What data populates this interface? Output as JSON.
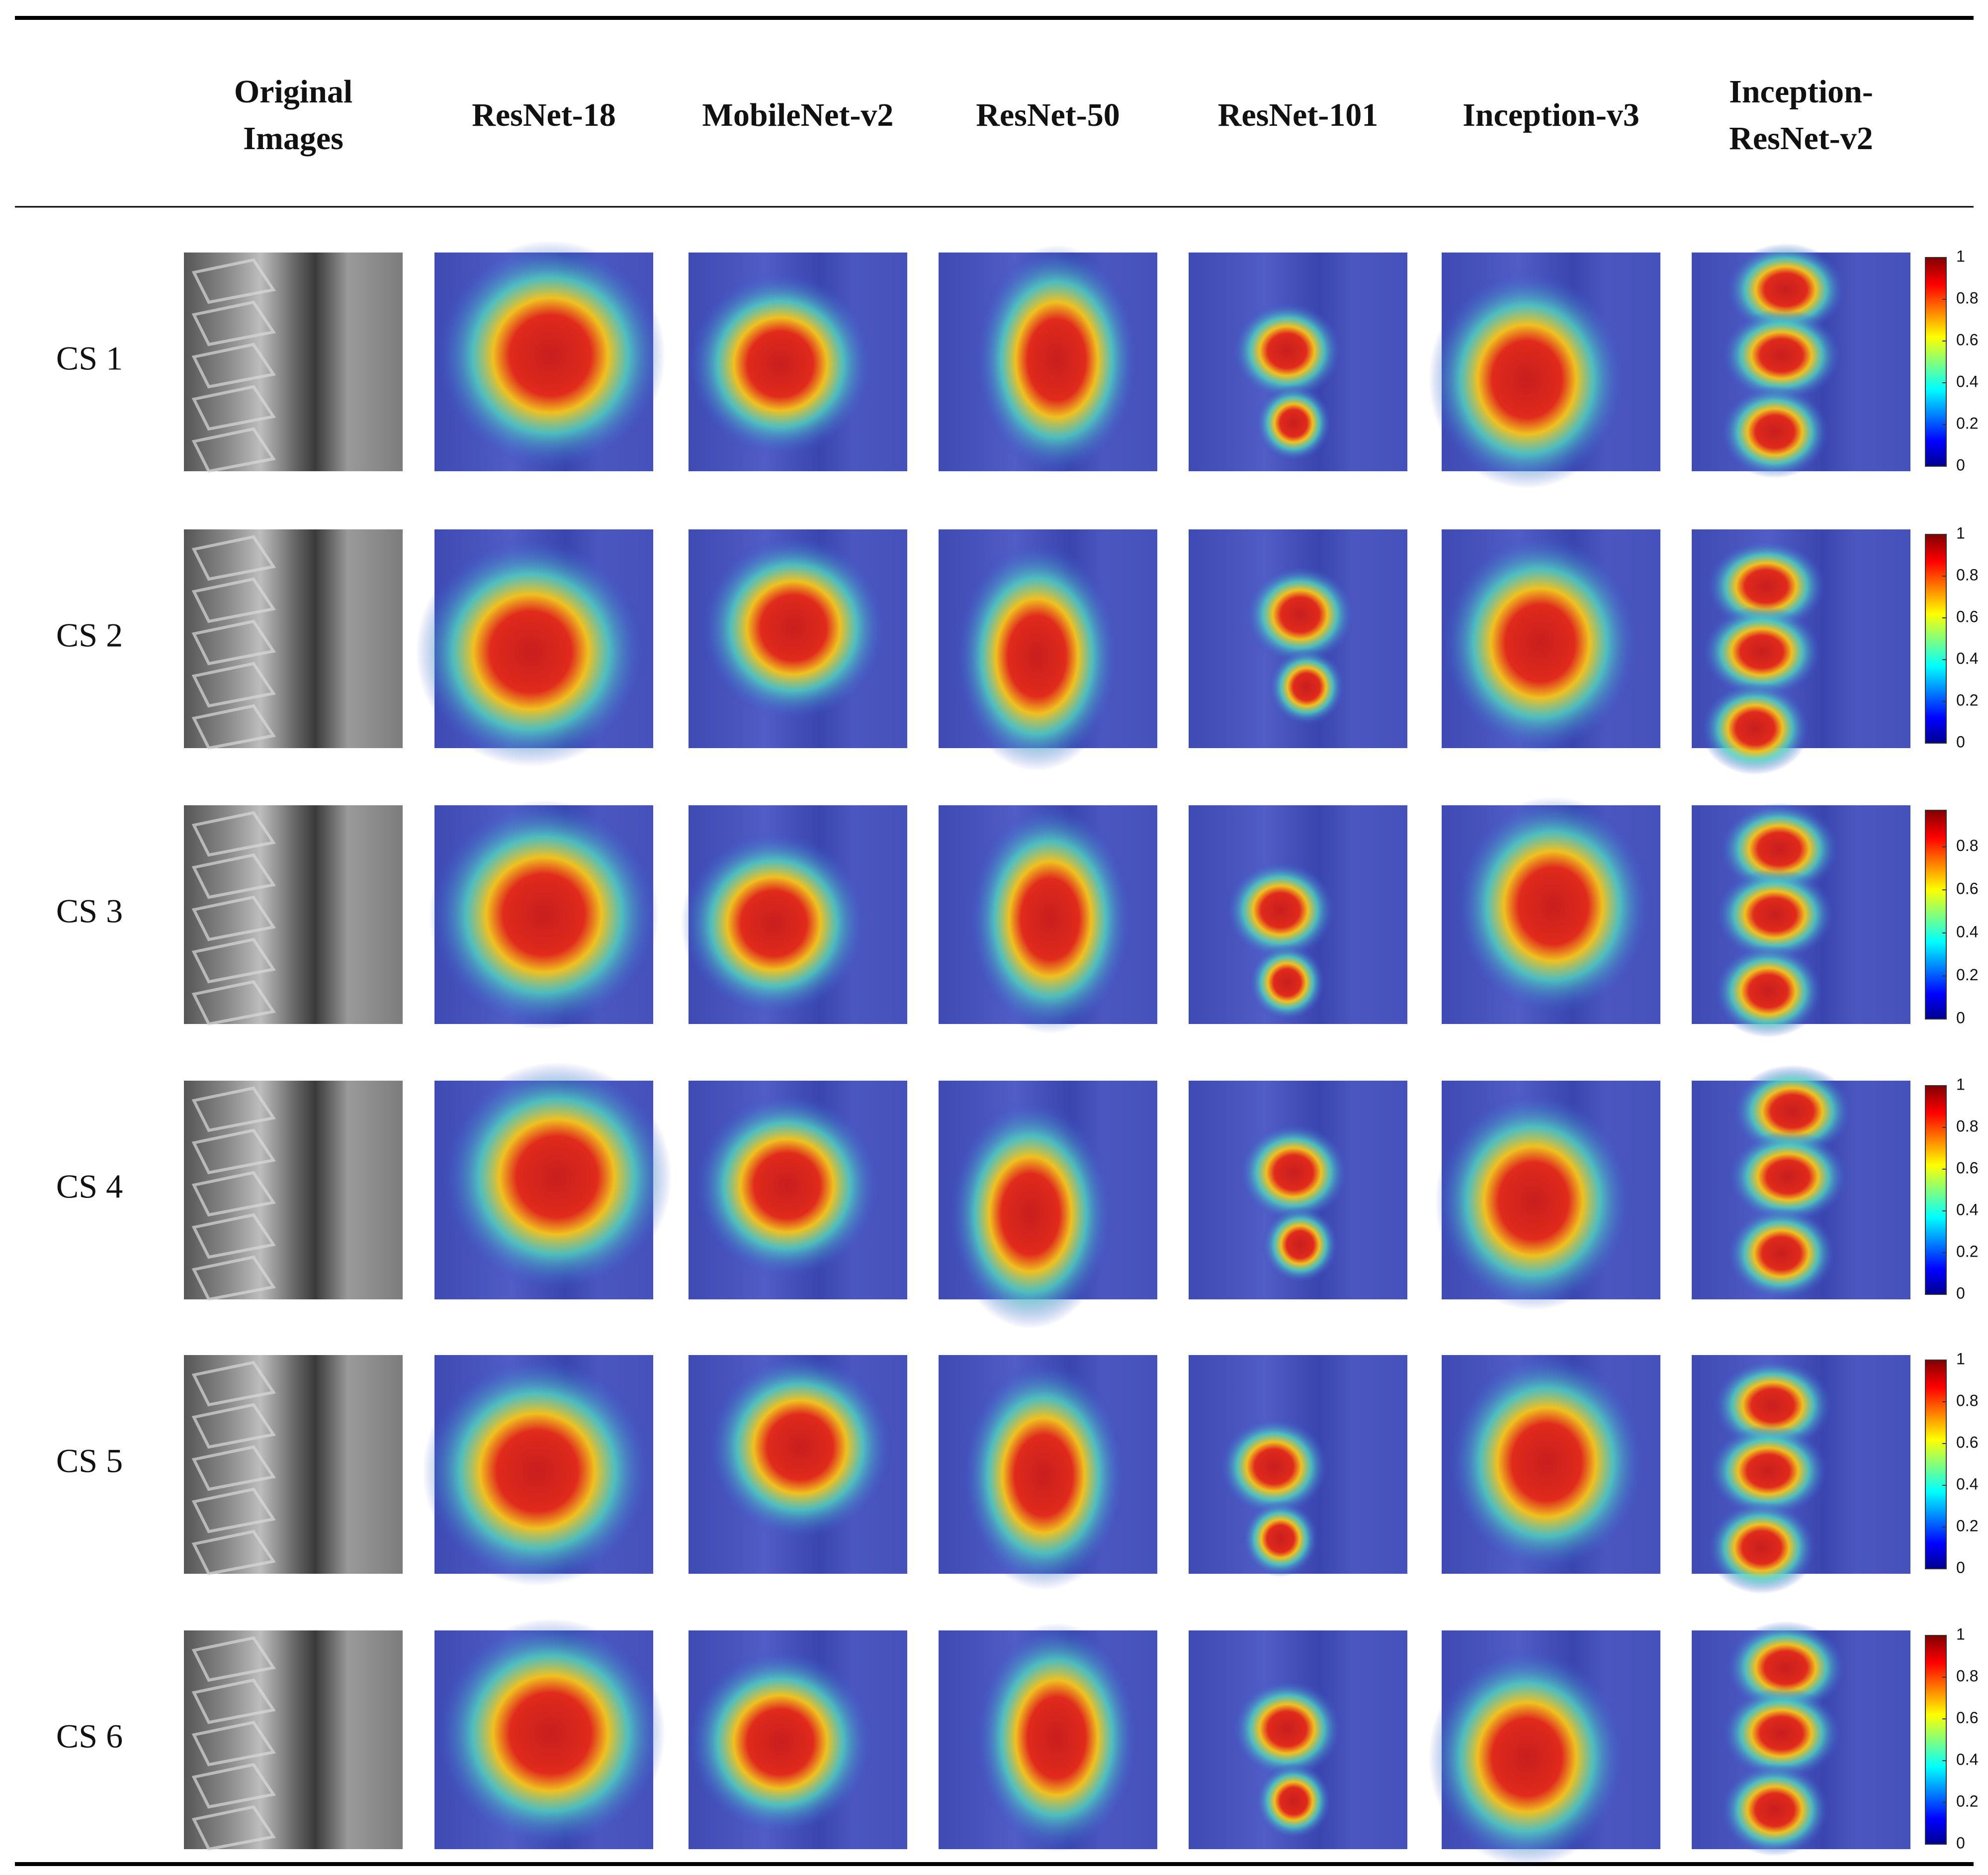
{
  "table": {
    "headers": [
      "Original Images",
      "ResNet-18",
      "MobileNet-v2",
      "ResNet-50",
      "ResNet-101",
      "Inception-v3",
      "Inception-ResNet-v2"
    ],
    "rows": [
      {
        "label": "CS 1",
        "colorbar_lim": [
          0,
          1
        ],
        "colorbar_ticks": [
          0,
          0.2,
          0.4,
          0.6,
          0.8,
          1
        ]
      },
      {
        "label": "CS 2",
        "colorbar_lim": [
          0,
          1
        ],
        "colorbar_ticks": [
          0,
          0.2,
          0.4,
          0.6,
          0.8,
          1
        ]
      },
      {
        "label": "CS 3",
        "colorbar_lim": [
          0,
          0.97
        ],
        "colorbar_ticks": [
          0,
          0.2,
          0.4,
          0.6,
          0.8
        ]
      },
      {
        "label": "CS 4",
        "colorbar_lim": [
          0,
          1
        ],
        "colorbar_ticks": [
          0,
          0.2,
          0.4,
          0.6,
          0.8,
          1
        ]
      },
      {
        "label": "CS 5",
        "colorbar_lim": [
          0,
          1
        ],
        "colorbar_ticks": [
          0,
          0.2,
          0.4,
          0.6,
          0.8,
          1
        ]
      },
      {
        "label": "CS 6",
        "colorbar_lim": [
          0,
          1
        ],
        "colorbar_ticks": [
          0,
          0.2,
          0.4,
          0.6,
          0.8,
          1
        ]
      }
    ]
  }
}
